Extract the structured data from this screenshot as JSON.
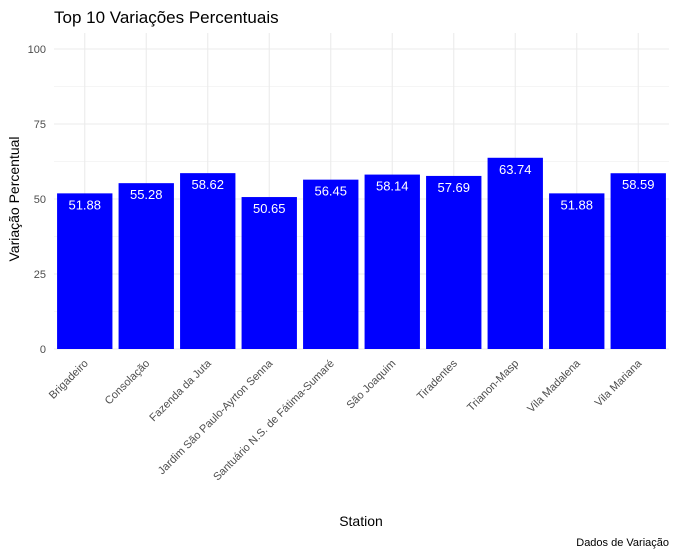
{
  "chart_data": {
    "type": "bar",
    "title": "Top 10 Variações Percentuais",
    "xlabel": "Station",
    "ylabel": "Variação Percentual",
    "caption": "Dados de Variação",
    "categories": [
      "Brigadeiro",
      "Consolação",
      "Fazenda da Juta",
      "Jardim São Paulo-Ayrton Senna",
      "Santuário N.S. de Fátima-Sumaré",
      "São Joaquim",
      "Tiradentes",
      "Trianon-Masp",
      "Vila Madalena",
      "Vila Mariana"
    ],
    "values": [
      51.88,
      55.28,
      58.62,
      50.65,
      56.45,
      58.14,
      57.69,
      63.74,
      51.88,
      58.59
    ],
    "value_labels": [
      "51.88",
      "55.28",
      "58.62",
      "50.65",
      "56.45",
      "58.14",
      "57.69",
      "63.74",
      "51.88",
      "58.59"
    ],
    "ylim": [
      0,
      105
    ],
    "yticks": [
      0,
      25,
      50,
      75,
      100
    ],
    "grid": true,
    "bar_color": "#0000ff",
    "grid_color": "#ebebeb"
  }
}
